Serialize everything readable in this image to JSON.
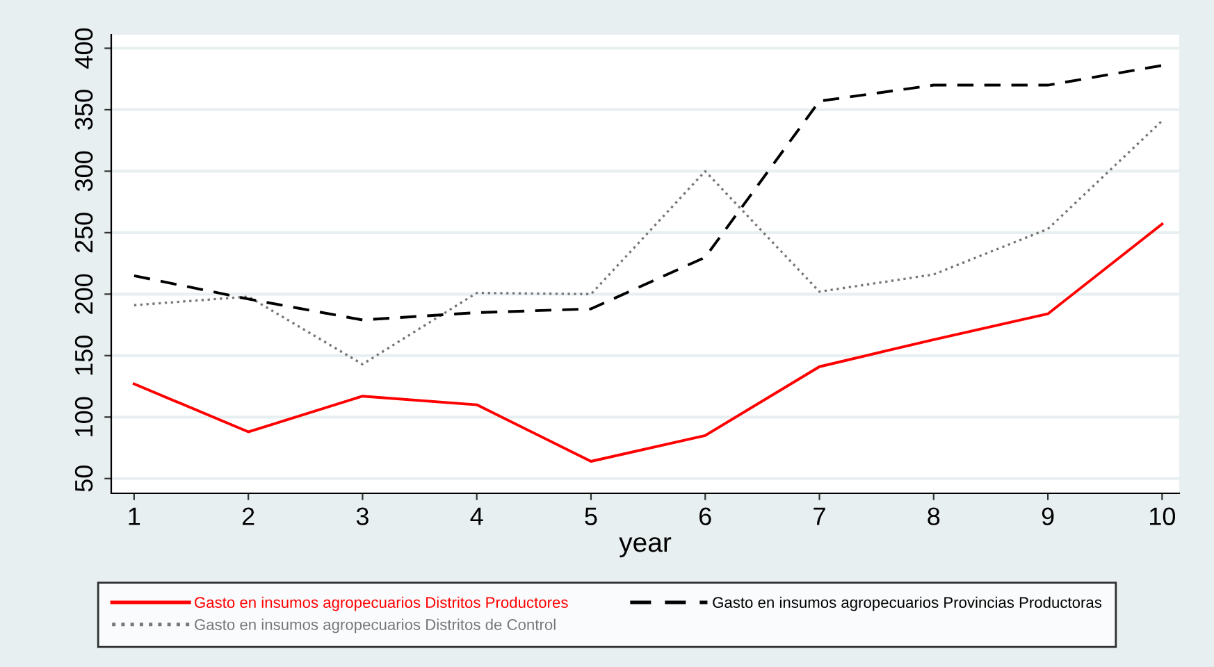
{
  "chart_data": {
    "type": "line",
    "xlabel": "year",
    "x": [
      1,
      2,
      3,
      4,
      5,
      6,
      7,
      8,
      9,
      10
    ],
    "xlim": [
      0.8,
      10.15
    ],
    "xticks": [
      1,
      2,
      3,
      4,
      5,
      6,
      7,
      8,
      9,
      10
    ],
    "ylim": [
      38,
      411
    ],
    "yticks": [
      50,
      100,
      150,
      200,
      250,
      300,
      350,
      400
    ],
    "grid": "y",
    "legend": "bottom",
    "marker": "none",
    "series": [
      {
        "name": "Gasto en insumos agropecuarios Distritos Productores",
        "color": "#ff0000",
        "line_style": "solid",
        "values": [
          127,
          88,
          117,
          110,
          64,
          85,
          141,
          163,
          184,
          257
        ]
      },
      {
        "name": "Gasto en insumos agropecuarios Distritos de Control",
        "color": "#777777",
        "line_style": "dotted",
        "values": [
          191,
          198,
          143,
          201,
          200,
          300,
          202,
          216,
          253,
          341
        ]
      },
      {
        "name": "Gasto en insumos agropecuarios Provincias Productoras",
        "color": "#000000",
        "line_style": "dashed",
        "values": [
          215,
          196,
          179,
          185,
          188,
          230,
          357,
          370,
          370,
          386
        ]
      }
    ]
  }
}
